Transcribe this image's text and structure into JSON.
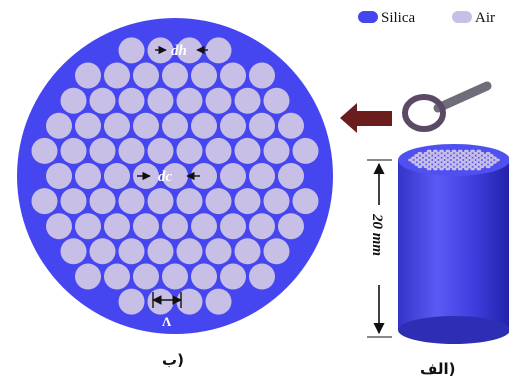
{
  "legend": {
    "silica": {
      "label": "Silica",
      "color": "#4646f0"
    },
    "air": {
      "label": "Air",
      "color": "#c8bfe6"
    }
  },
  "labels": {
    "d_h": "dh",
    "d_c": "dc",
    "pitch": "Λ",
    "length": "20 mm",
    "caption_b": "ب)",
    "caption_a": "الف)"
  },
  "colors": {
    "fiber_body": "#4646f0",
    "fiber_dark": "#2a2ab8",
    "hole": "#c8bfe6",
    "arrow": "#6b1d1d",
    "magnifier_ring": "#5a4a66",
    "magnifier_handle": "#6e6e7a"
  },
  "icons": {
    "magnifier": "magnifying-glass-icon",
    "direction": "left-arrow-icon"
  }
}
